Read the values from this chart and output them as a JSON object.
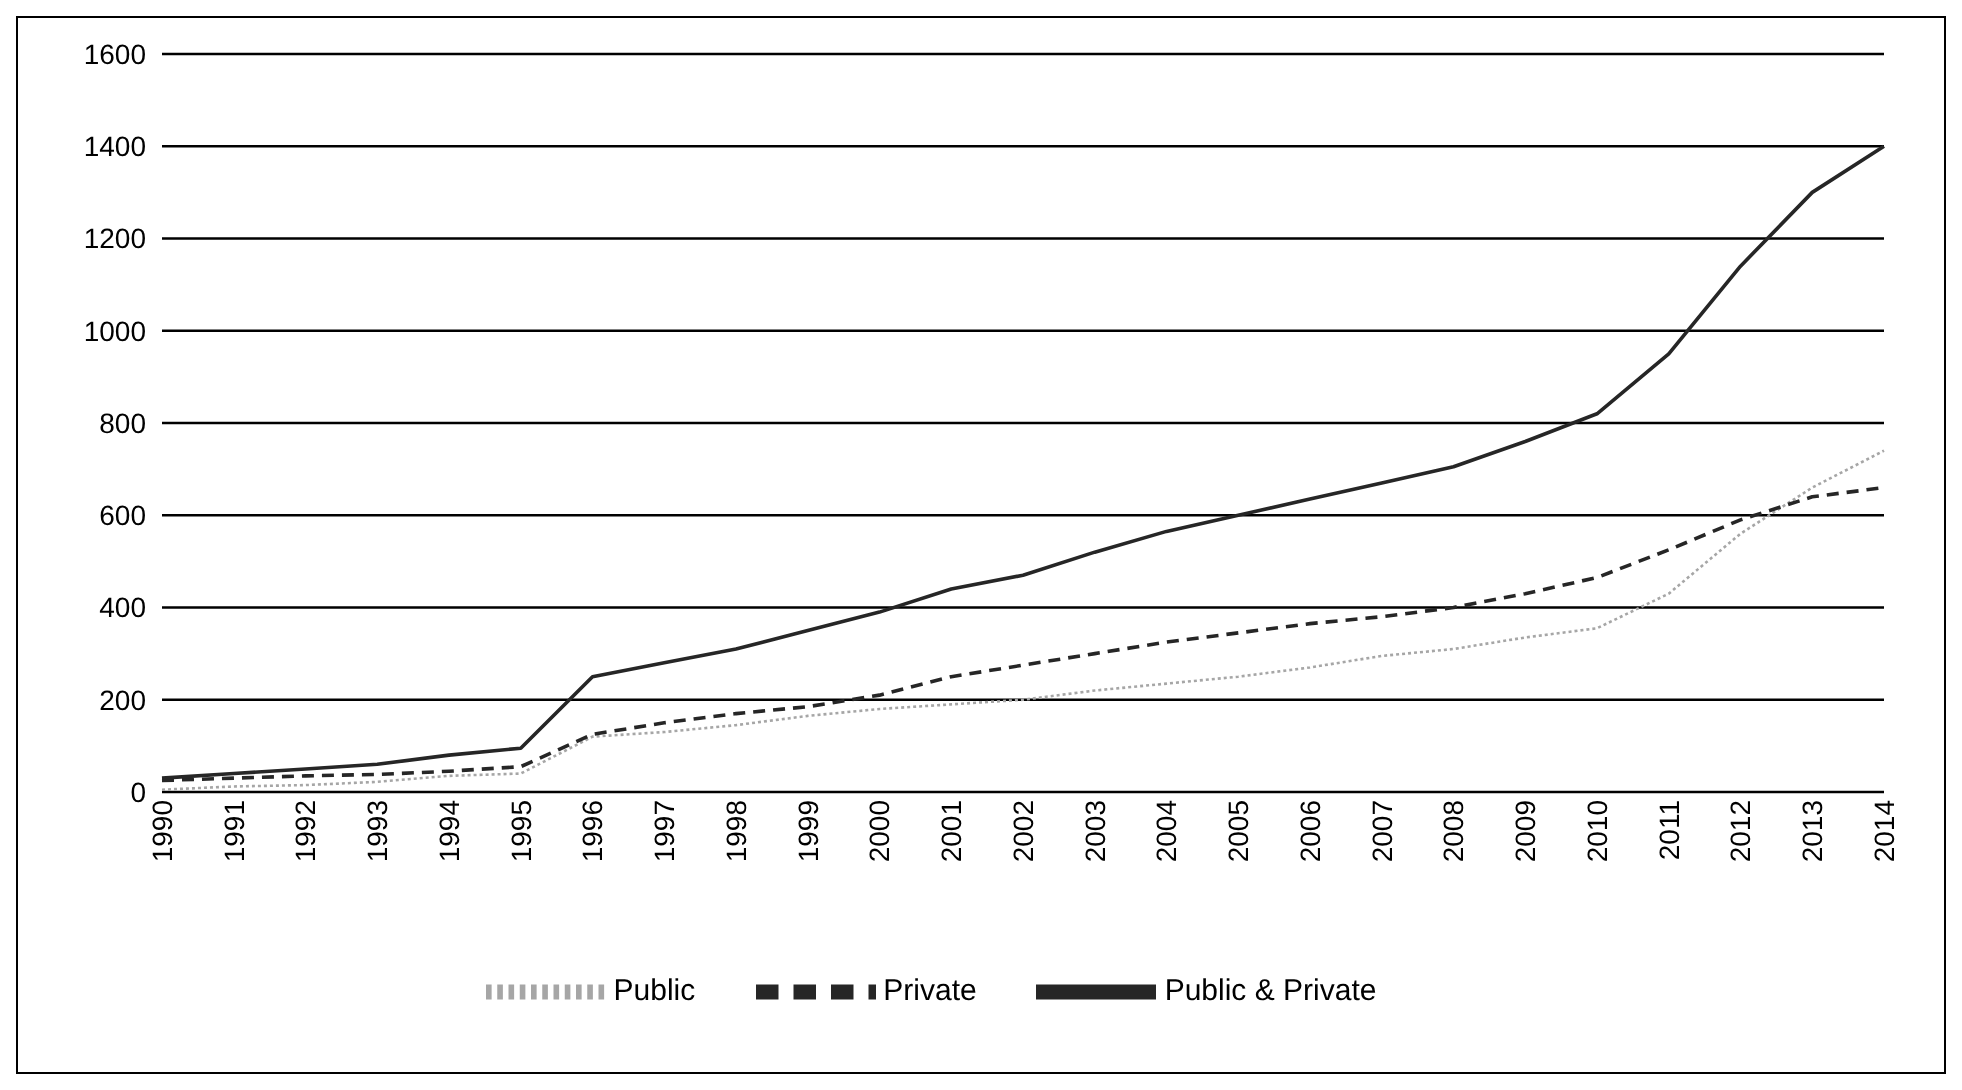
{
  "chart_data": {
    "type": "line",
    "categories": [
      "1990",
      "1991",
      "1992",
      "1993",
      "1994",
      "1995",
      "1996",
      "1997",
      "1998",
      "1999",
      "2000",
      "2001",
      "2002",
      "2003",
      "2004",
      "2005",
      "2006",
      "2007",
      "2008",
      "2009",
      "2010",
      "2011",
      "2012",
      "2013",
      "2014"
    ],
    "series": [
      {
        "name": "Public",
        "color": "#a6a6a6",
        "line_style": "dotted",
        "values": [
          5,
          12,
          15,
          22,
          35,
          40,
          120,
          130,
          145,
          165,
          180,
          190,
          200,
          220,
          235,
          250,
          270,
          295,
          310,
          335,
          355,
          430,
          560,
          660,
          740
        ]
      },
      {
        "name": "Private",
        "color": "#262626",
        "line_style": "dashed",
        "values": [
          25,
          30,
          35,
          38,
          45,
          55,
          125,
          150,
          170,
          185,
          210,
          250,
          275,
          300,
          325,
          345,
          365,
          380,
          400,
          430,
          465,
          525,
          590,
          640,
          660
        ]
      },
      {
        "name": "Public & Private",
        "color": "#262626",
        "line_style": "solid",
        "values": [
          30,
          40,
          50,
          60,
          80,
          95,
          250,
          280,
          310,
          350,
          390,
          440,
          470,
          520,
          565,
          600,
          635,
          670,
          705,
          760,
          820,
          950,
          1140,
          1300,
          1400
        ]
      }
    ],
    "ylim": [
      0,
      1600
    ],
    "yticks": [
      0,
      200,
      400,
      600,
      800,
      1000,
      1200,
      1400,
      1600
    ],
    "grid": "y",
    "legend": "bottom",
    "marker": "none"
  }
}
